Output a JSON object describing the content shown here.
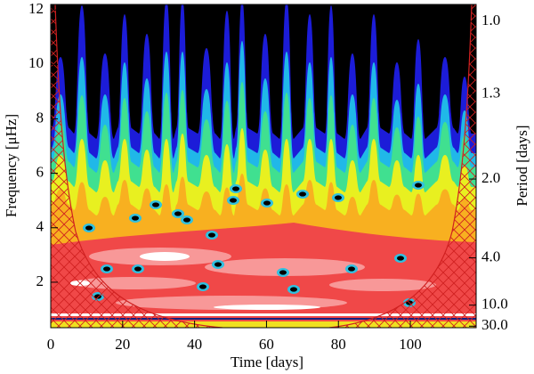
{
  "chart_data": {
    "type": "heatmap",
    "xlabel": "Time [days]",
    "ylabel": "Frequency [μHz]",
    "y2label": "Period [days]",
    "xlim": [
      0,
      118.3
    ],
    "xticks": [
      0,
      20,
      40,
      60,
      80,
      100
    ],
    "ylim": [
      0.33,
      12.2
    ],
    "yticks": [
      2,
      4,
      6,
      8,
      10,
      12
    ],
    "y2lim": [
      35.1,
      0.949
    ],
    "y2scale": "reciprocal",
    "y2ticks": [
      {
        "value": 1,
        "label": "1.0"
      },
      {
        "value": 1.3,
        "label": "1.3"
      },
      {
        "value": 2,
        "label": "2.0"
      },
      {
        "value": 4,
        "label": "4.0"
      },
      {
        "value": 10,
        "label": "10.0"
      },
      {
        "value": 30,
        "label": "30.0"
      }
    ]
  }
}
